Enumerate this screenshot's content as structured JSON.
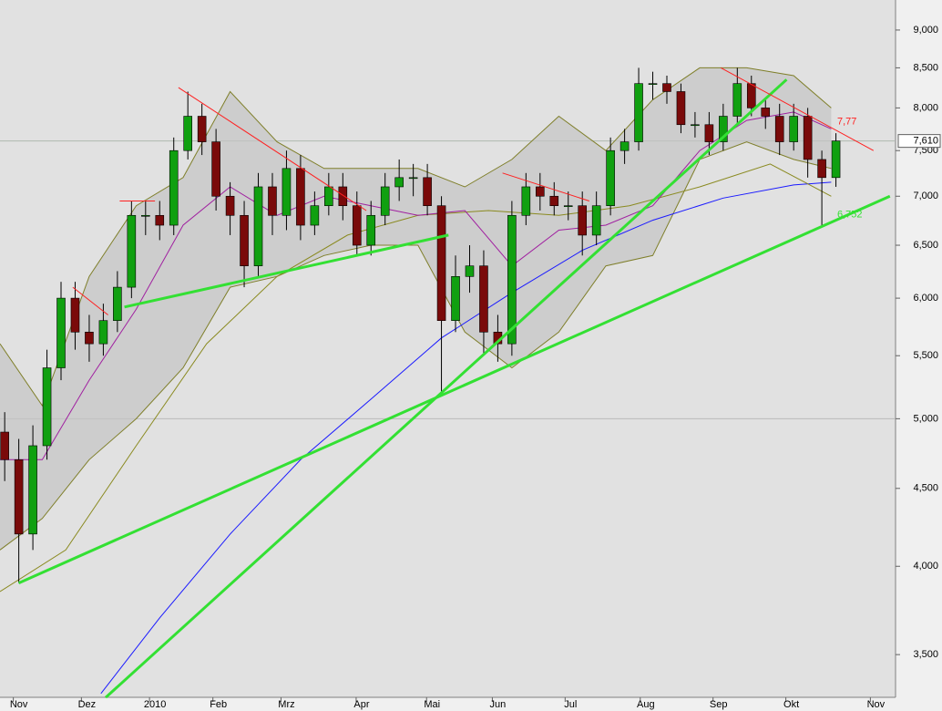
{
  "chart_data": {
    "type": "candlestick",
    "log_scale": true,
    "xlim": [
      -8,
      373
    ],
    "ylim": [
      3.281,
      9.418
    ],
    "yticks": [
      {
        "value": 3.5,
        "label": "3,500"
      },
      {
        "value": 4,
        "label": "4,000"
      },
      {
        "value": 4.5,
        "label": "4,500"
      },
      {
        "value": 5,
        "label": "5,000"
      },
      {
        "value": 5.5,
        "label": "5,500"
      },
      {
        "value": 6,
        "label": "6,000"
      },
      {
        "value": 6.5,
        "label": "6,500"
      },
      {
        "value": 7,
        "label": "7,000"
      },
      {
        "value": 7.5,
        "label": "7,500"
      },
      {
        "value": 8,
        "label": "8,000"
      },
      {
        "value": 8.5,
        "label": "8,500"
      },
      {
        "value": 9,
        "label": "9,000"
      }
    ],
    "xticks": [
      {
        "value": 0,
        "label": "Nov"
      },
      {
        "value": 29,
        "label": "Dez"
      },
      {
        "value": 58,
        "label": "2010"
      },
      {
        "value": 85,
        "label": "Feb"
      },
      {
        "value": 114,
        "label": "Mrz"
      },
      {
        "value": 146,
        "label": "Apr"
      },
      {
        "value": 176,
        "label": "Mai"
      },
      {
        "value": 204,
        "label": "Jun"
      },
      {
        "value": 235,
        "label": "Jul"
      },
      {
        "value": 267,
        "label": "Aug"
      },
      {
        "value": 298,
        "label": "Sep"
      },
      {
        "value": 329,
        "label": "Okt"
      },
      {
        "value": 365,
        "label": "Nov"
      }
    ],
    "reference_lines": [
      5
    ],
    "candles": {
      "color_up": "#10a010",
      "color_down": "#7a0a0a",
      "x": [
        -6,
        0,
        6,
        12,
        18,
        24,
        30,
        36,
        42,
        48,
        54,
        60,
        66,
        72,
        78,
        84,
        90,
        96,
        102,
        108,
        114,
        120,
        126,
        132,
        138,
        144,
        150,
        156,
        162,
        168,
        174,
        180,
        186,
        192,
        198,
        204,
        210,
        216,
        222,
        228,
        234,
        240,
        246,
        252,
        258,
        264,
        270,
        276,
        282,
        288,
        294,
        300,
        306,
        312,
        318,
        324,
        330,
        336,
        342,
        348
      ],
      "open": [
        4.9,
        4.7,
        4.2,
        4.8,
        5.4,
        6.0,
        5.7,
        5.6,
        5.8,
        6.1,
        6.8,
        6.8,
        6.7,
        7.5,
        7.9,
        7.6,
        7.0,
        6.8,
        6.3,
        7.1,
        6.8,
        7.3,
        6.7,
        6.9,
        7.1,
        6.9,
        6.5,
        6.8,
        7.1,
        7.2,
        7.2,
        6.9,
        5.8,
        6.2,
        6.3,
        5.7,
        5.6,
        6.8,
        7.1,
        7.0,
        6.9,
        6.9,
        6.6,
        6.9,
        7.5,
        7.6,
        8.3,
        8.3,
        8.2,
        7.8,
        7.8,
        7.6,
        7.9,
        8.3,
        8.0,
        7.9,
        7.6,
        7.9,
        7.4,
        7.2
      ],
      "high": [
        5.05,
        4.85,
        4.95,
        5.55,
        6.15,
        6.15,
        5.85,
        5.95,
        6.25,
        6.95,
        6.95,
        6.95,
        7.65,
        8.2,
        8.05,
        7.75,
        7.15,
        6.95,
        7.25,
        7.25,
        7.5,
        7.45,
        7.05,
        7.25,
        7.25,
        7.05,
        6.95,
        7.25,
        7.4,
        7.35,
        7.35,
        7.0,
        6.4,
        6.5,
        6.45,
        5.85,
        6.95,
        7.25,
        7.25,
        7.15,
        7.05,
        7.05,
        7.05,
        7.65,
        7.75,
        8.5,
        8.45,
        8.4,
        8.3,
        7.95,
        7.95,
        8.05,
        8.5,
        8.4,
        8.1,
        8.05,
        8.05,
        8.0,
        7.5,
        7.7
      ],
      "low": [
        4.55,
        3.9,
        4.1,
        4.7,
        5.3,
        5.55,
        5.45,
        5.5,
        5.7,
        6.0,
        6.6,
        6.55,
        6.6,
        7.4,
        7.45,
        6.85,
        6.6,
        6.1,
        6.2,
        6.6,
        6.65,
        6.55,
        6.6,
        6.8,
        6.75,
        6.4,
        6.4,
        6.7,
        6.95,
        7.0,
        6.8,
        5.2,
        5.7,
        6.05,
        5.5,
        5.45,
        5.5,
        6.7,
        6.85,
        6.8,
        6.75,
        6.4,
        6.5,
        6.8,
        7.35,
        7.5,
        8.1,
        8.05,
        7.7,
        7.65,
        7.45,
        7.5,
        7.8,
        7.9,
        7.75,
        7.45,
        7.5,
        7.2,
        6.7,
        7.1
      ],
      "close": [
        4.7,
        4.2,
        4.8,
        5.4,
        6.0,
        5.7,
        5.6,
        5.8,
        6.1,
        6.8,
        6.8,
        6.7,
        7.5,
        7.9,
        7.6,
        7.0,
        6.8,
        6.3,
        7.1,
        6.8,
        7.3,
        6.7,
        6.9,
        7.1,
        6.9,
        6.5,
        6.8,
        7.1,
        7.2,
        7.2,
        6.9,
        5.8,
        6.2,
        6.3,
        5.7,
        5.6,
        6.8,
        7.1,
        7.0,
        6.9,
        6.9,
        6.6,
        6.9,
        7.5,
        7.6,
        8.3,
        8.3,
        8.2,
        7.8,
        7.8,
        7.6,
        7.9,
        8.3,
        8.0,
        7.9,
        7.6,
        7.9,
        7.4,
        7.2,
        7.61
      ]
    },
    "bands": {
      "color": "#7f7f2a",
      "fill": "#c4c4c4",
      "x": [
        -8,
        10,
        30,
        50,
        70,
        90,
        110,
        130,
        150,
        170,
        190,
        210,
        230,
        250,
        270,
        290,
        310,
        330,
        346
      ],
      "upper": [
        5.6,
        5.1,
        6.2,
        6.9,
        7.2,
        8.2,
        7.6,
        7.3,
        7.3,
        7.3,
        7.1,
        7.4,
        7.9,
        7.5,
        8.1,
        8.5,
        8.5,
        8.4,
        8.0
      ],
      "lower": [
        4.1,
        4.3,
        4.7,
        5.0,
        5.4,
        6.1,
        6.2,
        6.4,
        6.5,
        6.5,
        5.7,
        5.4,
        5.7,
        6.3,
        6.4,
        7.4,
        7.6,
        7.4,
        7.3
      ]
    },
    "series": [
      {
        "color": "#1a1aff",
        "x": [
          35,
          60,
          90,
          120,
          150,
          180,
          210,
          240,
          270,
          300,
          330,
          346
        ],
        "values": [
          3.3,
          3.7,
          4.2,
          4.7,
          5.15,
          5.65,
          6.05,
          6.45,
          6.75,
          6.98,
          7.12,
          7.15
        ]
      },
      {
        "color": "#8a8a20",
        "x": [
          -8,
          20,
          50,
          80,
          110,
          140,
          170,
          200,
          230,
          260,
          290,
          320,
          346
        ],
        "values": [
          3.85,
          4.1,
          4.8,
          5.6,
          6.2,
          6.6,
          6.8,
          6.85,
          6.8,
          6.9,
          7.1,
          7.35,
          7.0
        ]
      },
      {
        "color": "#a020a0",
        "x": [
          -8,
          10,
          30,
          50,
          70,
          90,
          110,
          130,
          150,
          170,
          190,
          210,
          230,
          250,
          270,
          290,
          310,
          330,
          346
        ],
        "values": [
          4.7,
          4.7,
          5.3,
          5.9,
          6.7,
          7.1,
          6.8,
          7.0,
          6.9,
          6.8,
          6.85,
          6.3,
          6.65,
          6.7,
          6.9,
          7.5,
          7.85,
          7.95,
          7.75
        ]
      }
    ],
    "support_lines": [
      {
        "color": "#33e033",
        "x": [
          0,
          371
        ],
        "values": [
          3.9,
          7.0
        ]
      },
      {
        "color": "#33e033",
        "x": [
          37,
          327
        ],
        "values": [
          3.28,
          8.35
        ]
      },
      {
        "color": "#33e033",
        "x": [
          45,
          183
        ],
        "values": [
          5.92,
          6.6
        ]
      }
    ],
    "resistance_lines": [
      {
        "color": "#ff2020",
        "x": [
          68,
          148
        ],
        "values": [
          8.25,
          6.85
        ]
      },
      {
        "color": "#ff2020",
        "x": [
          206,
          243
        ],
        "values": [
          7.25,
          6.95
        ]
      },
      {
        "color": "#ff2020",
        "x": [
          299,
          364
        ],
        "values": [
          8.5,
          7.5
        ]
      },
      {
        "color": "#ff2020",
        "x": [
          23,
          38
        ],
        "values": [
          6.1,
          5.85
        ]
      },
      {
        "color": "#ff2020",
        "x": [
          43,
          58
        ],
        "values": [
          6.95,
          6.95
        ]
      }
    ],
    "annotations": [
      {
        "x": 347,
        "value": 7.77,
        "label": "7,77",
        "color": "#ff2020"
      },
      {
        "x": 347,
        "value": 6.752,
        "label": "6,752",
        "color": "#33e033"
      }
    ],
    "price_label": {
      "value": 7.61,
      "label": "7,610"
    }
  }
}
